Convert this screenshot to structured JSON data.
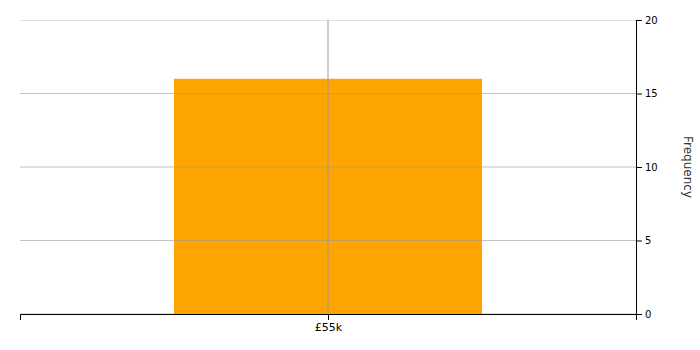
{
  "chart_data": {
    "type": "histogram",
    "bins": [
      35000,
      75000
    ],
    "values": [
      16
    ],
    "color": "#FFA500",
    "xlim": [
      15000,
      95000
    ],
    "xticks": [
      {
        "value": 55000,
        "label": "£55k"
      }
    ],
    "ylim": [
      0,
      20
    ],
    "yticks": [
      0,
      5,
      10,
      15,
      20
    ],
    "y_label": "Frequency",
    "vline": 55000,
    "grid": true
  }
}
